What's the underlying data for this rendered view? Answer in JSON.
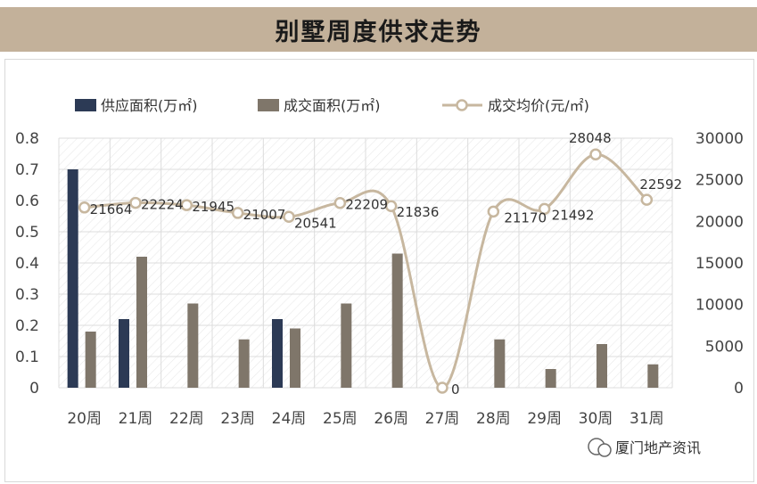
{
  "title": "别墅周度供求走势",
  "watermark_source": "厦门地产资讯",
  "colors": {
    "supply": "#2c3a55",
    "deal": "#7f766a",
    "price_line": "#c7b79f",
    "title_bar": "#c3b19a"
  },
  "chart_data": {
    "type": "bar",
    "categories": [
      "20周",
      "21周",
      "22周",
      "23周",
      "24周",
      "25周",
      "26周",
      "27周",
      "28周",
      "29周",
      "30周",
      "31周"
    ],
    "series": [
      {
        "name": "供应面积(万㎡)",
        "type": "bar",
        "axis": "left",
        "values": [
          0.7,
          0.22,
          0,
          0,
          0.22,
          0,
          0,
          0,
          0,
          0,
          0,
          0
        ]
      },
      {
        "name": "成交面积(万㎡)",
        "type": "bar",
        "axis": "left",
        "values": [
          0.18,
          0.42,
          0.27,
          0.155,
          0.19,
          0.27,
          0.43,
          0,
          0.155,
          0.06,
          0.14,
          0.075
        ]
      },
      {
        "name": "成交均价(元/㎡)",
        "type": "line",
        "smooth": true,
        "axis": "right",
        "values": [
          21664,
          22224,
          21945,
          21007,
          20541,
          22209,
          21836,
          0,
          21170,
          21492,
          28048,
          22592
        ],
        "labels": [
          "21664",
          "22224",
          "21945",
          "21007",
          "20541",
          "22209",
          "21836",
          "0",
          "21170",
          "21492",
          "28048",
          "22592"
        ]
      }
    ],
    "y_left": {
      "ylim": [
        0,
        0.8
      ],
      "ticks": [
        "0",
        "0.1",
        "0.2",
        "0.3",
        "0.4",
        "0.5",
        "0.6",
        "0.7",
        "0.8"
      ]
    },
    "y_right": {
      "ylim": [
        0,
        30000
      ],
      "ticks": [
        "0",
        "5000",
        "10000",
        "15000",
        "20000",
        "25000",
        "30000"
      ]
    },
    "legend_position": "top",
    "grid": true
  }
}
